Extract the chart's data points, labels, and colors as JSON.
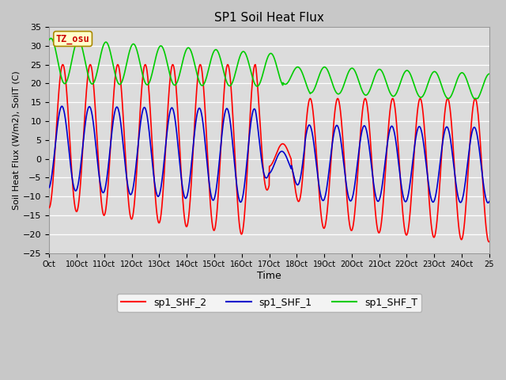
{
  "title": "SP1 Soil Heat Flux",
  "xlabel": "Time",
  "ylabel": "Soil Heat Flux (W/m2), SoilT (C)",
  "ylim": [
    -25,
    35
  ],
  "fig_bg_color": "#c8c8c8",
  "plot_bg_color": "#e0e0e0",
  "grid_color": "#ffffff",
  "tz_label": "TZ_osu",
  "tz_box_color": "#ffffcc",
  "tz_text_color": "#cc0000",
  "legend_labels": [
    "sp1_SHF_2",
    "sp1_SHF_1",
    "sp1_SHF_T"
  ],
  "line_colors": [
    "#ff0000",
    "#0000cc",
    "#00cc00"
  ],
  "x_tick_labels": [
    "Oct",
    "10Oct",
    "11Oct",
    "12Oct",
    "13Oct",
    "14Oct",
    "15Oct",
    "16Oct",
    "17Oct",
    "18Oct",
    "19Oct",
    "20Oct",
    "21Oct",
    "22Oct",
    "23Oct",
    "24Oct",
    "25"
  ],
  "line_width": 1.2
}
